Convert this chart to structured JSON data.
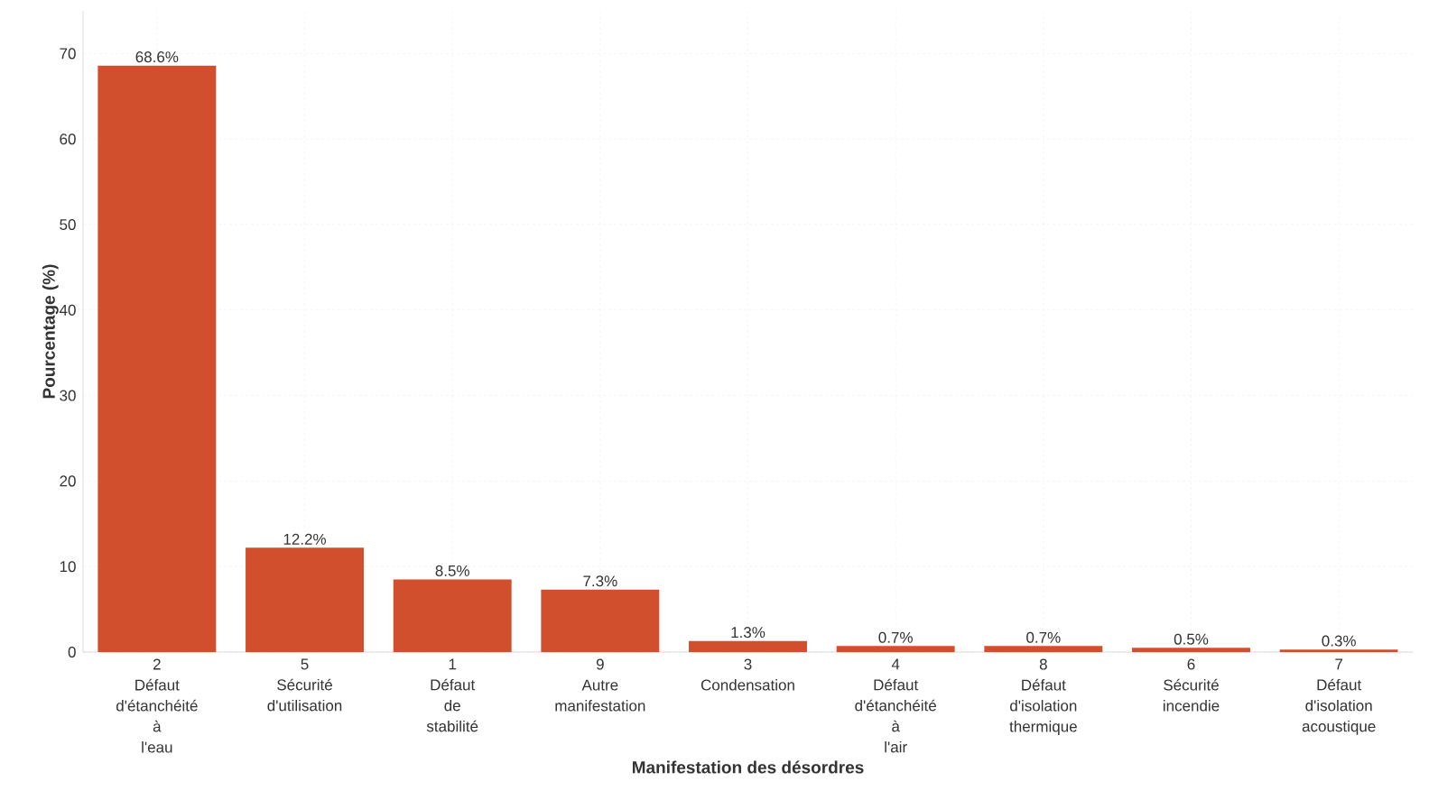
{
  "chart_data": {
    "type": "bar",
    "xlabel": "Manifestation des désordres",
    "ylabel": "Pourcentage (%)",
    "categories": [
      "2 Défaut d'étanchéité à l'eau",
      "5 Sécurité d'utilisation",
      "1 Défaut de stabilité",
      "9 Autre manifestation",
      "3 Condensation",
      "4 Défaut d'étanchéité à l'air",
      "8 Défaut d'isolation thermique",
      "6 Sécurité incendie",
      "7 Défaut d'isolation acoustique"
    ],
    "values": [
      68.6,
      12.2,
      8.5,
      7.3,
      1.3,
      0.7,
      0.7,
      0.5,
      0.3
    ],
    "value_labels": [
      "68.6%",
      "12.2%",
      "8.5%",
      "7.3%",
      "1.3%",
      "0.7%",
      "0.7%",
      "0.5%",
      "0.3%"
    ],
    "color": "#d14f2c",
    "ylim": [
      0,
      75
    ],
    "yticks": [
      0,
      10,
      20,
      30,
      40,
      50,
      60,
      70
    ],
    "grid": true
  }
}
